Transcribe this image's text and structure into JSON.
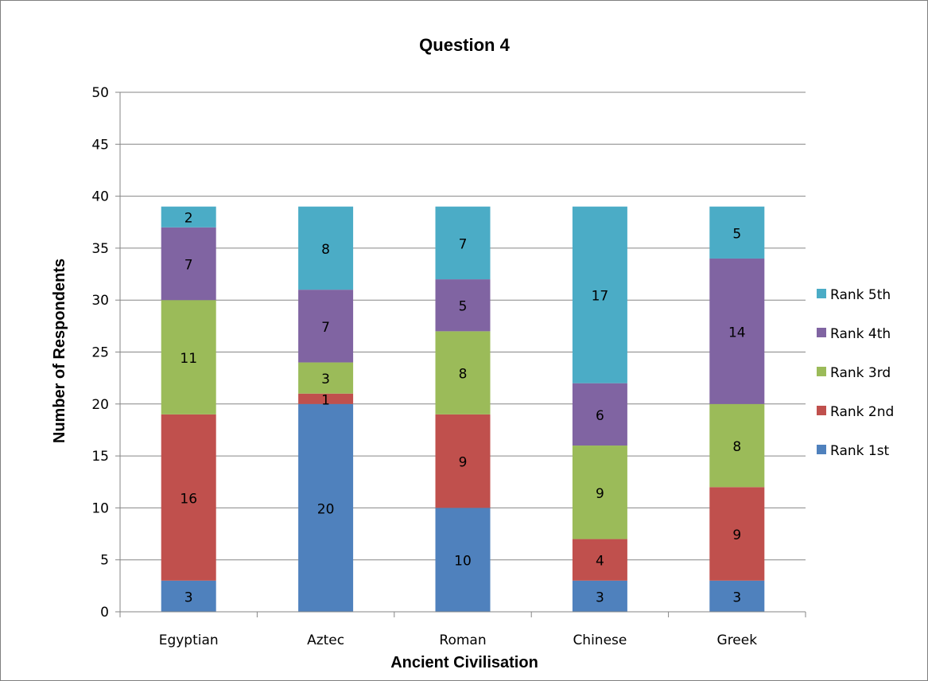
{
  "chart_data": {
    "type": "bar",
    "stacked": true,
    "title": "Question 4",
    "xlabel": "Ancient Civilisation",
    "ylabel": "Number of Respondents",
    "categories": [
      "Egyptian",
      "Aztec",
      "Roman",
      "Chinese",
      "Greek"
    ],
    "ylim": [
      0,
      50
    ],
    "yticks": [
      0,
      5,
      10,
      15,
      20,
      25,
      30,
      35,
      40,
      45,
      50
    ],
    "grid": true,
    "legend_position": "right",
    "series": [
      {
        "name": "Rank 1st",
        "color": "#4f81bd",
        "values": [
          3,
          20,
          10,
          3,
          3
        ]
      },
      {
        "name": "Rank 2nd",
        "color": "#c0504d",
        "values": [
          16,
          1,
          9,
          4,
          9
        ]
      },
      {
        "name": "Rank 3rd",
        "color": "#9bbb59",
        "values": [
          11,
          3,
          8,
          9,
          8
        ]
      },
      {
        "name": "Rank 4th",
        "color": "#8064a2",
        "values": [
          7,
          7,
          5,
          6,
          14
        ]
      },
      {
        "name": "Rank 5th",
        "color": "#4bacc6",
        "values": [
          2,
          8,
          7,
          17,
          5
        ]
      }
    ]
  }
}
